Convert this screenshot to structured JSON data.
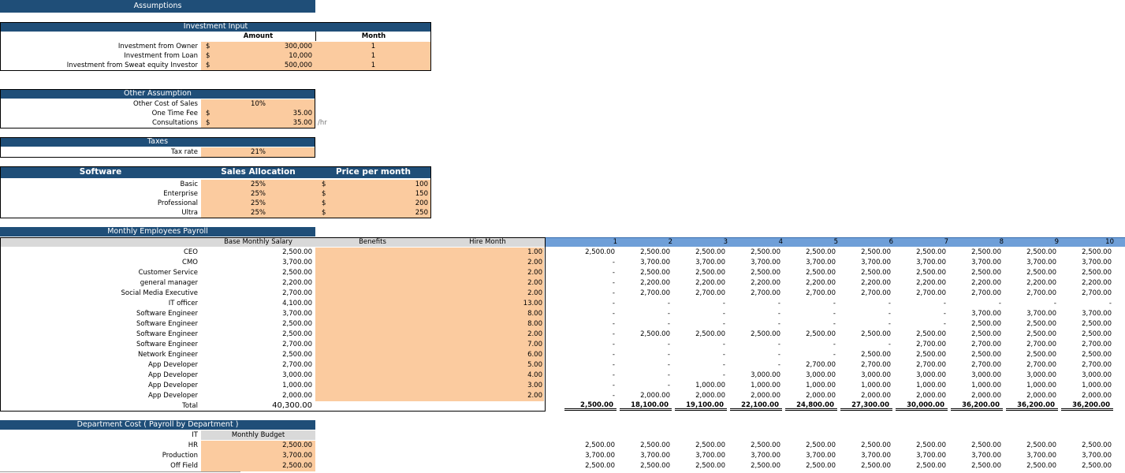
{
  "header": {
    "title": "Assumptions"
  },
  "investment": {
    "title": "Investment Input",
    "columns": [
      "Amount",
      "Month"
    ],
    "rows": [
      {
        "label": "Investment from Owner",
        "currency": "$",
        "amount": "300,000",
        "month": "1"
      },
      {
        "label": "Investment from Loan",
        "currency": "$",
        "amount": "10,000",
        "month": "1"
      },
      {
        "label": "Investment from Sweat equity Investor",
        "currency": "$",
        "amount": "500,000",
        "month": "1"
      }
    ]
  },
  "other": {
    "title": "Other Assumption",
    "rows": [
      {
        "label": "Other Cost of Sales",
        "value": "10%"
      },
      {
        "label": "One Time Fee",
        "currency": "$",
        "value": "35.00"
      },
      {
        "label": "Consultations",
        "currency": "$",
        "value": "35.00",
        "unit": "/hr"
      }
    ]
  },
  "taxes": {
    "title": "Taxes",
    "rows": [
      {
        "label": "Tax rate",
        "value": "21%"
      }
    ]
  },
  "software": {
    "columns": [
      "Software",
      "Sales Allocation",
      "Price per month"
    ],
    "rows": [
      {
        "label": "Basic",
        "allocation": "25%",
        "currency": "$",
        "price": "100"
      },
      {
        "label": "Enterprise",
        "allocation": "25%",
        "currency": "$",
        "price": "150"
      },
      {
        "label": "Professional",
        "allocation": "25%",
        "currency": "$",
        "price": "200"
      },
      {
        "label": "Ultra",
        "allocation": "25%",
        "currency": "$",
        "price": "250"
      }
    ]
  },
  "payroll": {
    "title": "Monthly Employees Payroll",
    "columns": [
      "Base Monthly Salary",
      "Benefits",
      "Hire Month"
    ],
    "months": [
      "1",
      "2",
      "3",
      "4",
      "5",
      "6",
      "7",
      "8",
      "9",
      "10"
    ],
    "rows": [
      {
        "label": "CEO",
        "salary": "2,500.00",
        "hire": "1.00",
        "monthly": [
          "2,500.00",
          "2,500.00",
          "2,500.00",
          "2,500.00",
          "2,500.00",
          "2,500.00",
          "2,500.00",
          "2,500.00",
          "2,500.00",
          "2,500.00"
        ]
      },
      {
        "label": "CMO",
        "salary": "3,700.00",
        "hire": "2.00",
        "monthly": [
          "-",
          "3,700.00",
          "3,700.00",
          "3,700.00",
          "3,700.00",
          "3,700.00",
          "3,700.00",
          "3,700.00",
          "3,700.00",
          "3,700.00"
        ]
      },
      {
        "label": "Customer Service",
        "salary": "2,500.00",
        "hire": "2.00",
        "monthly": [
          "-",
          "2,500.00",
          "2,500.00",
          "2,500.00",
          "2,500.00",
          "2,500.00",
          "2,500.00",
          "2,500.00",
          "2,500.00",
          "2,500.00"
        ]
      },
      {
        "label": "general manager",
        "salary": "2,200.00",
        "hire": "2.00",
        "monthly": [
          "-",
          "2,200.00",
          "2,200.00",
          "2,200.00",
          "2,200.00",
          "2,200.00",
          "2,200.00",
          "2,200.00",
          "2,200.00",
          "2,200.00"
        ]
      },
      {
        "label": "Social Media Executive",
        "salary": "2,700.00",
        "hire": "2.00",
        "monthly": [
          "-",
          "2,700.00",
          "2,700.00",
          "2,700.00",
          "2,700.00",
          "2,700.00",
          "2,700.00",
          "2,700.00",
          "2,700.00",
          "2,700.00"
        ]
      },
      {
        "label": "IT officer",
        "salary": "4,100.00",
        "hire": "13.00",
        "monthly": [
          "-",
          "-",
          "-",
          "-",
          "-",
          "-",
          "-",
          "-",
          "-",
          "-"
        ]
      },
      {
        "label": "Software Engineer",
        "salary": "3,700.00",
        "hire": "8.00",
        "monthly": [
          "-",
          "-",
          "-",
          "-",
          "-",
          "-",
          "-",
          "3,700.00",
          "3,700.00",
          "3,700.00"
        ]
      },
      {
        "label": "Software Engineer",
        "salary": "2,500.00",
        "hire": "8.00",
        "monthly": [
          "-",
          "-",
          "-",
          "-",
          "-",
          "-",
          "-",
          "2,500.00",
          "2,500.00",
          "2,500.00"
        ]
      },
      {
        "label": "Software Engineer",
        "salary": "2,500.00",
        "hire": "2.00",
        "monthly": [
          "-",
          "2,500.00",
          "2,500.00",
          "2,500.00",
          "2,500.00",
          "2,500.00",
          "2,500.00",
          "2,500.00",
          "2,500.00",
          "2,500.00"
        ]
      },
      {
        "label": "Software Engineer",
        "salary": "2,700.00",
        "hire": "7.00",
        "monthly": [
          "-",
          "-",
          "-",
          "-",
          "-",
          "-",
          "2,700.00",
          "2,700.00",
          "2,700.00",
          "2,700.00"
        ]
      },
      {
        "label": "Network Engineer",
        "salary": "2,500.00",
        "hire": "6.00",
        "monthly": [
          "-",
          "-",
          "-",
          "-",
          "-",
          "2,500.00",
          "2,500.00",
          "2,500.00",
          "2,500.00",
          "2,500.00"
        ]
      },
      {
        "label": "App Developer",
        "salary": "2,700.00",
        "hire": "5.00",
        "monthly": [
          "-",
          "-",
          "-",
          "-",
          "2,700.00",
          "2,700.00",
          "2,700.00",
          "2,700.00",
          "2,700.00",
          "2,700.00"
        ]
      },
      {
        "label": "App Developer",
        "salary": "3,000.00",
        "hire": "4.00",
        "monthly": [
          "-",
          "-",
          "-",
          "3,000.00",
          "3,000.00",
          "3,000.00",
          "3,000.00",
          "3,000.00",
          "3,000.00",
          "3,000.00"
        ]
      },
      {
        "label": "App Developer",
        "salary": "1,000.00",
        "hire": "3.00",
        "monthly": [
          "-",
          "-",
          "1,000.00",
          "1,000.00",
          "1,000.00",
          "1,000.00",
          "1,000.00",
          "1,000.00",
          "1,000.00",
          "1,000.00"
        ]
      },
      {
        "label": "App Developer",
        "salary": "2,000.00",
        "hire": "2.00",
        "monthly": [
          "-",
          "2,000.00",
          "2,000.00",
          "2,000.00",
          "2,000.00",
          "2,000.00",
          "2,000.00",
          "2,000.00",
          "2,000.00",
          "2,000.00"
        ]
      }
    ],
    "total": {
      "label": "Total",
      "salary": "40,300.00",
      "monthly": [
        "2,500.00",
        "18,100.00",
        "19,100.00",
        "22,100.00",
        "24,800.00",
        "27,300.00",
        "30,000.00",
        "36,200.00",
        "36,200.00",
        "36,200.00"
      ]
    }
  },
  "department": {
    "title": "Department Cost ( Payroll by Department )",
    "first_label": "IT",
    "column": "Monthly Budget",
    "rows": [
      {
        "label": "HR",
        "budget": "2,500.00",
        "monthly": [
          "2,500.00",
          "2,500.00",
          "2,500.00",
          "2,500.00",
          "2,500.00",
          "2,500.00",
          "2,500.00",
          "2,500.00",
          "2,500.00",
          "2,500.00"
        ]
      },
      {
        "label": "Production",
        "budget": "3,700.00",
        "monthly": [
          "3,700.00",
          "3,700.00",
          "3,700.00",
          "3,700.00",
          "3,700.00",
          "3,700.00",
          "3,700.00",
          "3,700.00",
          "3,700.00",
          "3,700.00"
        ]
      },
      {
        "label": "Off Field",
        "budget": "2,500.00",
        "monthly": [
          "2,500.00",
          "2,500.00",
          "2,500.00",
          "2,500.00",
          "2,500.00",
          "2,500.00",
          "2,500.00",
          "2,500.00",
          "2,500.00",
          "2,500.00"
        ]
      }
    ]
  }
}
